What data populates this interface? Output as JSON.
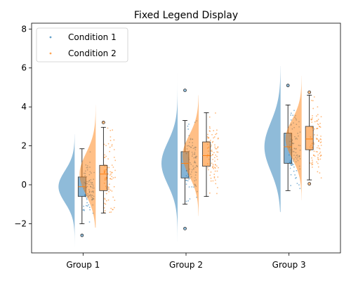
{
  "chart_data": {
    "type": "raincloud",
    "title": "Fixed Legend Display",
    "xlabel": "",
    "ylabel": "",
    "categories": [
      "Group 1",
      "Group 2",
      "Group 3"
    ],
    "ylim": [
      -3.5,
      8.3
    ],
    "yticks": [
      -2,
      0,
      2,
      4,
      6,
      8
    ],
    "grid": false,
    "legend": {
      "position": "top-left"
    },
    "series": [
      {
        "name": "Condition 1",
        "color": "#1f77b4",
        "groups": [
          {
            "category": "Group 1",
            "whisker_low": -2.0,
            "q1": -0.6,
            "median": -0.1,
            "q3": 0.4,
            "whisker_high": 1.85,
            "outliers": [
              -2.6
            ],
            "kde_range": [
              -3.2,
              2.6
            ]
          },
          {
            "category": "Group 2",
            "whisker_low": -1.0,
            "q1": 0.35,
            "median": 1.1,
            "q3": 1.7,
            "whisker_high": 3.3,
            "outliers": [
              -2.25,
              4.85
            ],
            "kde_range": [
              -2.9,
              5.9
            ]
          },
          {
            "category": "Group 3",
            "whisker_low": -0.3,
            "q1": 1.1,
            "median": 1.95,
            "q3": 2.65,
            "whisker_high": 4.1,
            "outliers": [
              5.1
            ],
            "kde_range": [
              -1.4,
              6.1
            ]
          }
        ]
      },
      {
        "name": "Condition 2",
        "color": "#ff7f0e",
        "groups": [
          {
            "category": "Group 1",
            "whisker_low": -1.45,
            "q1": -0.3,
            "median": 0.55,
            "q3": 1.0,
            "whisker_high": 2.95,
            "outliers": [
              3.2
            ],
            "kde_range": [
              -2.2,
              4.1
            ]
          },
          {
            "category": "Group 2",
            "whisker_low": -0.6,
            "q1": 0.95,
            "median": 1.5,
            "q3": 2.2,
            "whisker_high": 3.7,
            "outliers": [],
            "kde_range": [
              -1.6,
              4.6
            ]
          },
          {
            "category": "Group 3",
            "whisker_low": 0.25,
            "q1": 1.8,
            "median": 2.35,
            "q3": 3.0,
            "whisker_high": 4.6,
            "outliers": [
              0.05,
              4.75
            ],
            "kde_range": [
              -0.8,
              5.6
            ]
          }
        ]
      }
    ]
  }
}
